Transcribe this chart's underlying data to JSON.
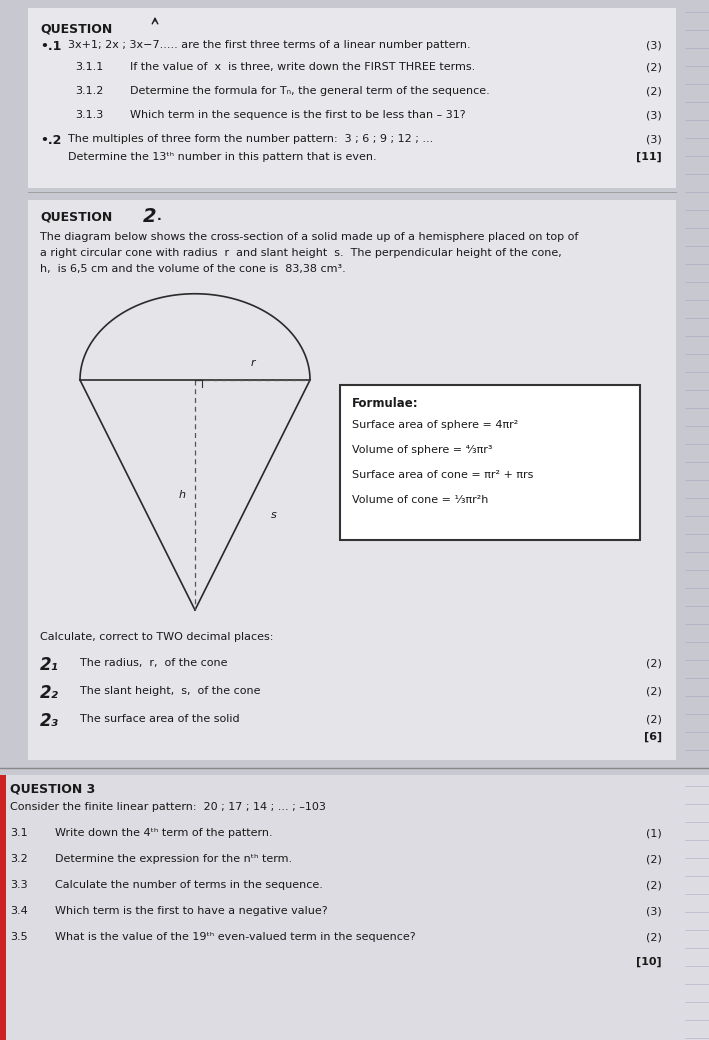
{
  "bg_top": "#c8c8d0",
  "bg_mid": "#c5c5cd",
  "bg_bot": "#b8b8c2",
  "paper_top": "#e8e8ec",
  "paper_mid": "#e4e4e9",
  "paper_bot": "#dcdce2",
  "tc": "#1a1a1a",
  "q1_title": "QUESTION",
  "q1_1_num": "•.1",
  "q1_1_text": "3x+1; 2x ; 3x−7..... are the first three terms of a linear number pattern.",
  "q1_1_marks": "(3)",
  "q1_1_1_label": "3.1.1",
  "q1_1_1_text": "If the value of  x  is three, write down the FIRST THREE terms.",
  "q1_1_1_marks": "(2)",
  "q1_1_2_label": "3.1.2",
  "q1_1_2_text": "Determine the formula for Tₙ, the general term of the sequence.",
  "q1_1_2_marks": "(2)",
  "q1_1_3_label": "3.1.3",
  "q1_1_3_text": "Which term in the sequence is the first to be less than – 31?",
  "q1_1_3_marks": "(3)",
  "q1_2_num": "•.2",
  "q1_2_line1": "The multiples of three form the number pattern:  3 ; 6 ; 9 ; 12 ; ...",
  "q1_2_line2": "Determine the 13ᵗʰ number in this pattern that is even.",
  "q1_2_marks": "(3)",
  "q1_2_total": "[11]",
  "q2_title": "QUESTION",
  "q2_num": "2",
  "q2_intro1": "The diagram below shows the cross-section of a solid made up of a hemisphere placed on top of",
  "q2_intro2": "a right circular cone with radius  r  and slant height  s.  The perpendicular height of the cone,",
  "q2_intro3": "h,  is 6,5 cm and the volume of the cone is  83,38 cm³.",
  "formulae_title": "Formulae:",
  "f1_label": "Surface area of sphere =",
  "f1_val": " 4πr²",
  "f2_label": "Volume of sphere =",
  "f2_val": " ⁴⁄₃πr³",
  "f3_label": "Surface area of cone =",
  "f3_val": " πr² + πrs",
  "f4_label": "Volume of cone =",
  "f4_val": " ¹⁄₃πr²h",
  "q2_calc": "Calculate, correct to TWO decimal places:",
  "q2_1_num": "2₁",
  "q2_1_text": "The radius,  r,  of the cone",
  "q2_1_marks": "(2)",
  "q2_2_num": "2₂",
  "q2_2_text": "The slant height,  s,  of the cone",
  "q2_2_marks": "(2)",
  "q2_3_num": "2₃",
  "q2_3_text": "The surface area of the solid",
  "q2_3_marks": "(2)",
  "q2_total": "[6]",
  "q3_title": "QUESTION 3",
  "q3_intro": "Consider the finite linear pattern:  20 ; 17 ; 14 ; ... ; –103",
  "q3_1_label": "3.1",
  "q3_1_text": "Write down the 4ᵗʰ term of the pattern.",
  "q3_1_marks": "(1)",
  "q3_2_label": "3.2",
  "q3_2_text": "Determine the expression for the nᵗʰ term.",
  "q3_2_marks": "(2)",
  "q3_3_label": "3.3",
  "q3_3_text": "Calculate the number of terms in the sequence.",
  "q3_3_marks": "(2)",
  "q3_4_label": "3.4",
  "q3_4_text": "Which term is the first to have a negative value?",
  "q3_4_marks": "(3)",
  "q3_5_label": "3.5",
  "q3_5_text": "What is the value of the 19ᵗʰ even-valued term in the sequence?",
  "q3_5_marks": "(2)",
  "q3_total": "[10]"
}
